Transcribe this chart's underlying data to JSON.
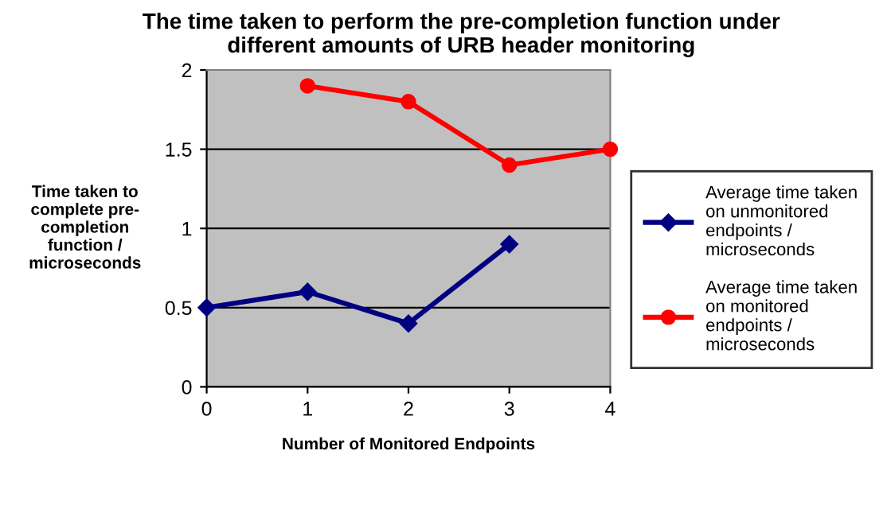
{
  "chart_data": {
    "type": "line",
    "title": "The time taken to perform the pre-completion function under\ndifferent amounts of URB header monitoring",
    "xlabel": "Number of Monitored Endpoints",
    "ylabel": "Time taken to\ncomplete pre-\ncompletion\nfunction /\nmicroseconds",
    "x": [
      0,
      1,
      2,
      3,
      4
    ],
    "xlim": [
      0,
      4
    ],
    "xticks": [
      0,
      1,
      2,
      3,
      4
    ],
    "ylim": [
      0,
      2
    ],
    "yticks": [
      0,
      0.5,
      1,
      1.5,
      2
    ],
    "grid": "y",
    "legend": "right",
    "series": [
      {
        "name": "Average time taken\non unmonitored\nendpoints /\nmicroseconds",
        "color": "#000080",
        "marker": "diamond",
        "values": [
          0.5,
          0.6,
          0.4,
          0.9,
          null
        ]
      },
      {
        "name": "Average time taken\non monitored\nendpoints /\nmicroseconds",
        "color": "#ff0000",
        "marker": "circle",
        "values": [
          null,
          1.9,
          1.8,
          1.4,
          1.5
        ]
      }
    ]
  }
}
